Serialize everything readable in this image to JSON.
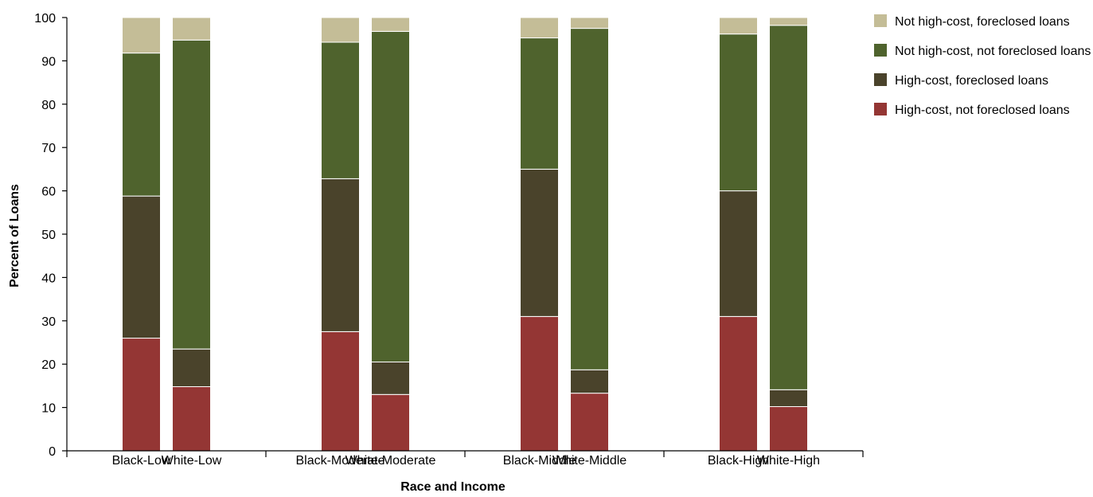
{
  "chart_data": {
    "type": "bar",
    "stacked": true,
    "xlabel": "Race and Income",
    "ylabel": "Percent of Loans",
    "ylim": [
      0,
      100
    ],
    "yticks": [
      0,
      10,
      20,
      30,
      40,
      50,
      60,
      70,
      80,
      90,
      100
    ],
    "grid": false,
    "legend_position": "top-right",
    "groups": [
      "Low",
      "Moderate",
      "Middle",
      "High"
    ],
    "categories": [
      "Black-Low",
      "White-Low",
      "Black-Moderate",
      "White-Moderate",
      "Black-Middle",
      "White-Middle",
      "Black-High",
      "White-High"
    ],
    "series": [
      {
        "name": "High-cost, not foreclosed loans",
        "color": "#943634",
        "values": [
          26,
          14.8,
          27.5,
          13,
          31,
          13.3,
          31,
          10.2
        ]
      },
      {
        "name": "High-cost, foreclosed loans",
        "color": "#4a432b",
        "values": [
          32.8,
          8.7,
          35.3,
          7.5,
          34,
          5.4,
          29,
          3.9
        ]
      },
      {
        "name": "Not high-cost, not foreclosed loans",
        "color": "#4f632d",
        "values": [
          33,
          71.3,
          31.5,
          76.3,
          30.3,
          78.8,
          36.2,
          84.1
        ]
      },
      {
        "name": "Not high-cost, foreclosed loans",
        "color": "#c4bd97",
        "values": [
          8.2,
          5.2,
          5.7,
          3.2,
          4.7,
          2.5,
          3.8,
          1.8
        ]
      }
    ],
    "legend_order": [
      3,
      2,
      1,
      0
    ]
  }
}
